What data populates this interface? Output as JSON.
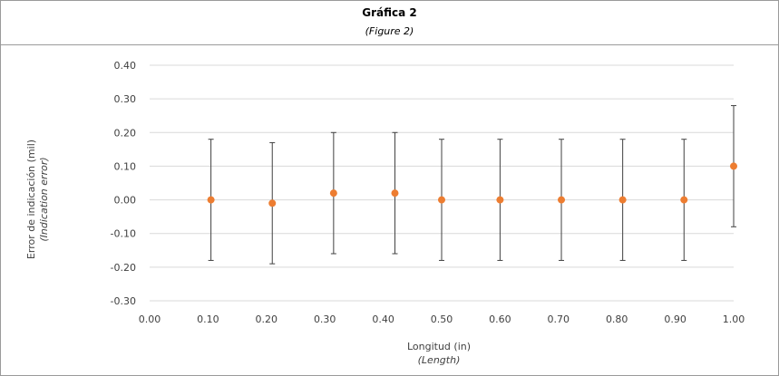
{
  "header": {
    "title": "Gráfica 2",
    "subtitle": "(Figure 2)"
  },
  "chart_data": {
    "type": "scatter",
    "title": "Gráfica 2",
    "subtitle": "(Figure 2)",
    "xlabel": "Longitud (in)",
    "xlabel_sub": "(Length)",
    "ylabel": "Error de indicación (mil)",
    "ylabel_sub": "(Indication error)",
    "xlim": [
      0,
      1
    ],
    "ylim": [
      -0.3,
      0.4
    ],
    "x_ticks": [
      "0.00",
      "0.10",
      "0.20",
      "0.30",
      "0.40",
      "0.50",
      "0.60",
      "0.70",
      "0.80",
      "0.90",
      "1.00"
    ],
    "y_ticks": [
      "0.40",
      "0.30",
      "0.20",
      "0.10",
      "0.00",
      "-0.10",
      "-0.20",
      "-0.30"
    ],
    "grid": "horizontal",
    "x": [
      0.105,
      0.21,
      0.315,
      0.42,
      0.5,
      0.6,
      0.705,
      0.81,
      0.915,
      1.0
    ],
    "y": [
      0.0,
      -0.01,
      0.02,
      0.02,
      0.0,
      0.0,
      0.0,
      0.0,
      0.0,
      0.1
    ],
    "error_low": [
      -0.18,
      -0.19,
      -0.16,
      -0.16,
      -0.18,
      -0.18,
      -0.18,
      -0.18,
      -0.18,
      -0.08
    ],
    "error_high": [
      0.18,
      0.17,
      0.2,
      0.2,
      0.18,
      0.18,
      0.18,
      0.18,
      0.18,
      0.28
    ],
    "marker_color": "#ED7D31",
    "errorbar_color": "#404040",
    "gridline_color": "#D9D9D9"
  }
}
